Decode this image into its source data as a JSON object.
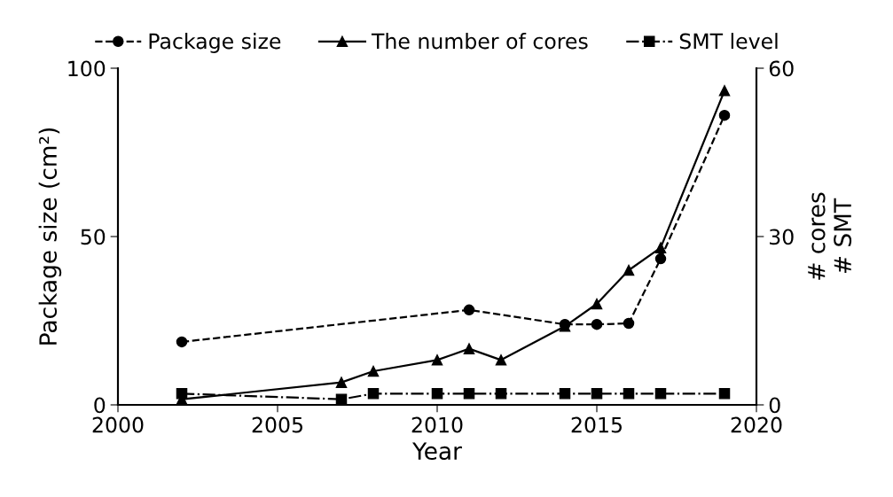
{
  "chart_data": {
    "type": "line",
    "xlabel": "Year",
    "ylabel": "Package size (cm²)",
    "y2label": "# cores\n# SMT",
    "xlim": [
      2000,
      2020
    ],
    "xticks": [
      2000,
      2005,
      2010,
      2015,
      2020
    ],
    "ylim": [
      0,
      100
    ],
    "yticks": [
      0,
      50,
      100
    ],
    "y2lim": [
      0,
      60
    ],
    "y2ticks": [
      0,
      30,
      60
    ],
    "grid": false,
    "legend": "top",
    "series": [
      {
        "name": "Package size",
        "color": "#000000",
        "marker": "circle",
        "line_style": "dashed",
        "x": [
          2002,
          2011,
          2014,
          2015,
          2016,
          2017,
          2019
        ],
        "values": [
          18.7,
          28.2,
          23.9,
          23.9,
          24.2,
          43.4,
          86
        ]
      },
      {
        "name": "The number of cores",
        "color": "#000000",
        "marker": "triangle",
        "line_style": "solid",
        "axis": "y2",
        "x": [
          2002,
          2007,
          2008,
          2010,
          2011,
          2012,
          2014,
          2015,
          2016,
          2017,
          2019
        ],
        "values": [
          1,
          4,
          6,
          8,
          10,
          8,
          14,
          18,
          24,
          28,
          56
        ]
      },
      {
        "name": "SMT level",
        "color": "#000000",
        "marker": "square",
        "line_style": "dashdot",
        "axis": "y2",
        "x": [
          2002,
          2007,
          2008,
          2010,
          2011,
          2012,
          2014,
          2015,
          2016,
          2017,
          2019
        ],
        "values": [
          2,
          1,
          2,
          2,
          2,
          2,
          2,
          2,
          2,
          2,
          2
        ]
      }
    ]
  }
}
